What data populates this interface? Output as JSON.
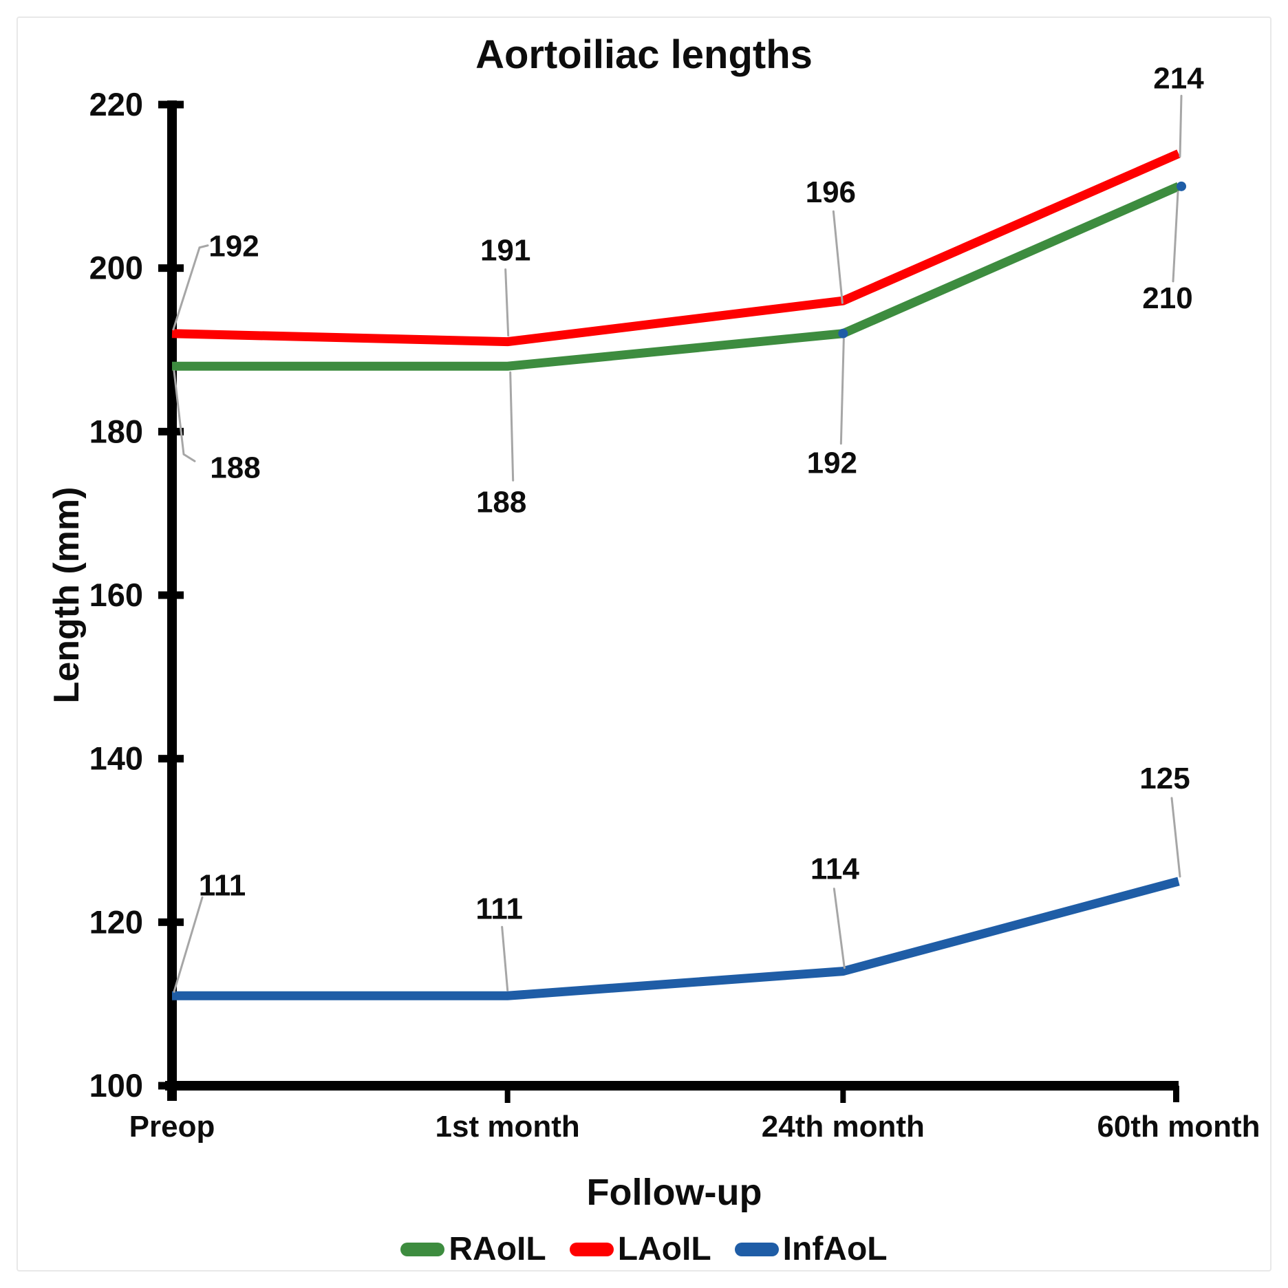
{
  "figure": {
    "title": "Aortoiliac lengths"
  },
  "chart_data": {
    "type": "line",
    "title": "Aortoiliac lengths",
    "xlabel": "Follow-up",
    "ylabel": "Length (mm)",
    "categories": [
      "Preop",
      "1st month",
      "24th month",
      "60th month"
    ],
    "ylim": [
      100,
      220
    ],
    "yticks": [
      100,
      120,
      140,
      160,
      180,
      200,
      220
    ],
    "grid": false,
    "data_labels": true,
    "legend_position": "bottom",
    "series": [
      {
        "name": "RAoIL",
        "color": "#3d8c3f",
        "values": [
          188,
          188,
          192,
          210
        ]
      },
      {
        "name": "LAoIL",
        "color": "#fe0000",
        "values": [
          192,
          191,
          196,
          214
        ]
      },
      {
        "name": "InfAoL",
        "color": "#1f5da6",
        "values": [
          111,
          111,
          114,
          125
        ]
      }
    ]
  },
  "colors": {
    "axis": "#000000",
    "leader_line": "#a6a6a6",
    "frame_border": "#e8e8e8",
    "background": "#ffffff"
  }
}
